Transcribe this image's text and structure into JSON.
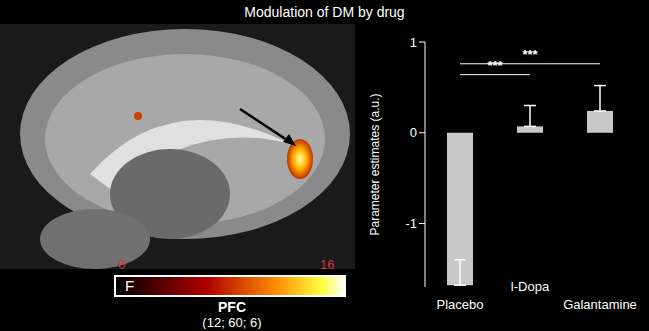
{
  "chart_data": {
    "type": "bar",
    "title": "Modulation of DM by drug",
    "categories": [
      "Placebo",
      "l-Dopa",
      "Galantamine"
    ],
    "values": [
      -1.68,
      0.07,
      0.24
    ],
    "errors": [
      0.28,
      0.23,
      0.28
    ],
    "color": "#c8c8c8",
    "y_label": "Parameter estimates (a.u.)",
    "ylim": [
      -1.7,
      1
    ],
    "yticks": [
      -1,
      0,
      1
    ],
    "grid": false,
    "annotations": [
      {
        "from": "Placebo",
        "to": "l-Dopa",
        "label": "***"
      },
      {
        "from": "Placebo",
        "to": "Galantamine",
        "label": "***"
      }
    ]
  },
  "image_panel": {
    "region": "PFC",
    "coordinates": "(12; 60; 6)",
    "colorbar": {
      "label": "F",
      "range": [
        0,
        16
      ]
    }
  }
}
